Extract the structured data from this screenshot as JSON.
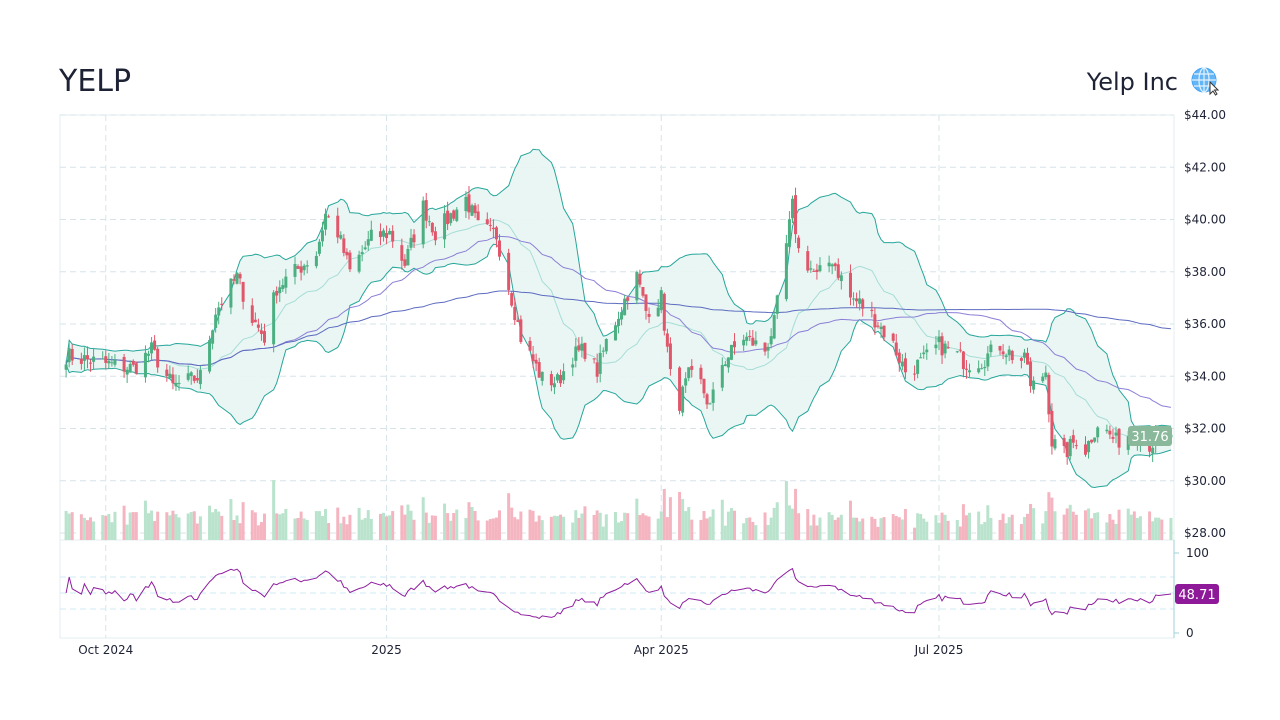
{
  "header": {
    "symbol": "YELP",
    "company": "Yelp Inc",
    "globe_icon": "globe-with-cursor-icon"
  },
  "chart_data": {
    "type": "candlestick",
    "price_axis": {
      "ticks": [
        "$44.00",
        "$42.00",
        "$40.00",
        "$38.00",
        "$36.00",
        "$34.00",
        "$32.00",
        "$30.00",
        "$28.00"
      ],
      "ylim": [
        28,
        44
      ]
    },
    "rsi_axis": {
      "ticks": [
        "100",
        "0"
      ],
      "ylim": [
        0,
        100
      ],
      "bands": [
        30,
        50,
        70
      ]
    },
    "x_ticks": [
      {
        "label": "Oct 2024",
        "date": "2024-10-01"
      },
      {
        "label": "2025",
        "date": "2025-01-01"
      },
      {
        "label": "Apr 2025",
        "date": "2025-04-01"
      },
      {
        "label": "Jul 2025",
        "date": "2025-07-01"
      }
    ],
    "xlim": [
      "2024-09-16",
      "2025-09-16"
    ],
    "indicators": [
      "Bollinger Bands (20,2)",
      "SMA 50",
      "SMA 200",
      "Volume",
      "RSI 14"
    ],
    "close_anchors": [
      [
        "2024-09-18",
        34.8
      ],
      [
        "2024-09-30",
        34.5
      ],
      [
        "2024-10-10",
        34.3
      ],
      [
        "2024-10-16",
        35.0
      ],
      [
        "2024-10-23",
        33.6
      ],
      [
        "2024-11-01",
        34.0
      ],
      [
        "2024-11-06",
        36.5
      ],
      [
        "2024-11-13",
        37.8
      ],
      [
        "2024-11-18",
        36.2
      ],
      [
        "2024-11-22",
        35.5
      ],
      [
        "2024-11-26",
        37.4
      ],
      [
        "2024-12-03",
        38.1
      ],
      [
        "2024-12-09",
        38.7
      ],
      [
        "2024-12-12",
        40.2
      ],
      [
        "2024-12-16",
        39.5
      ],
      [
        "2024-12-20",
        38.0
      ],
      [
        "2024-12-27",
        39.3
      ],
      [
        "2025-01-02",
        39.5
      ],
      [
        "2025-01-07",
        38.3
      ],
      [
        "2025-01-13",
        40.5
      ],
      [
        "2025-01-17",
        39.5
      ],
      [
        "2025-01-27",
        40.8
      ],
      [
        "2025-01-31",
        39.7
      ],
      [
        "2025-02-06",
        39.4
      ],
      [
        "2025-02-11",
        37.0
      ],
      [
        "2025-02-14",
        35.5
      ],
      [
        "2025-02-21",
        33.9
      ],
      [
        "2025-02-26",
        33.8
      ],
      [
        "2025-03-03",
        34.8
      ],
      [
        "2025-03-07",
        35.0
      ],
      [
        "2025-03-11",
        34.2
      ],
      [
        "2025-03-14",
        35.3
      ],
      [
        "2025-03-21",
        37.2
      ],
      [
        "2025-03-24",
        37.8
      ],
      [
        "2025-03-27",
        36.5
      ],
      [
        "2025-04-01",
        37.0
      ],
      [
        "2025-04-04",
        34.0
      ],
      [
        "2025-04-07",
        33.0
      ],
      [
        "2025-04-10",
        34.0
      ],
      [
        "2025-04-14",
        33.7
      ],
      [
        "2025-04-17",
        32.8
      ],
      [
        "2025-04-21",
        34.5
      ],
      [
        "2025-04-28",
        35.5
      ],
      [
        "2025-05-05",
        35.0
      ],
      [
        "2025-05-08",
        36.0
      ],
      [
        "2025-05-12",
        39.0
      ],
      [
        "2025-05-14",
        40.5
      ],
      [
        "2025-05-16",
        38.8
      ],
      [
        "2025-05-22",
        37.8
      ],
      [
        "2025-05-27",
        38.5
      ],
      [
        "2025-06-02",
        37.0
      ],
      [
        "2025-06-05",
        36.8
      ],
      [
        "2025-06-10",
        36.2
      ],
      [
        "2025-06-16",
        35.2
      ],
      [
        "2025-06-20",
        34.2
      ],
      [
        "2025-06-25",
        34.5
      ],
      [
        "2025-07-01",
        35.2
      ],
      [
        "2025-07-07",
        34.8
      ],
      [
        "2025-07-10",
        34.5
      ],
      [
        "2025-07-15",
        34.6
      ],
      [
        "2025-07-21",
        35.2
      ],
      [
        "2025-07-25",
        34.8
      ],
      [
        "2025-07-30",
        34.5
      ],
      [
        "2025-07-31",
        33.5
      ],
      [
        "2025-08-05",
        34.2
      ],
      [
        "2025-08-07",
        31.5
      ],
      [
        "2025-08-11",
        31.0
      ],
      [
        "2025-08-15",
        31.6
      ],
      [
        "2025-08-18",
        31.2
      ],
      [
        "2025-08-22",
        32.2
      ],
      [
        "2025-08-28",
        31.5
      ],
      [
        "2025-09-03",
        31.9
      ],
      [
        "2025-09-08",
        31.4
      ],
      [
        "2025-09-15",
        31.76
      ]
    ],
    "last_price": "31.76",
    "last_rsi": "48.71",
    "colors": {
      "up": "#4caf82",
      "down": "#e0566a",
      "up_volume": "#b9e3cc",
      "down_volume": "#f5b5c0",
      "bollinger": "#26a69a",
      "bollinger_fill": "#e8f5f3",
      "sma50": "#8b7fd6",
      "sma200": "#5c6bc0",
      "rsi": "#8e1e9e",
      "price_badge": "#8ab89a",
      "rsi_badge": "#8e1a9a",
      "grid": "#d6e4ea"
    }
  }
}
